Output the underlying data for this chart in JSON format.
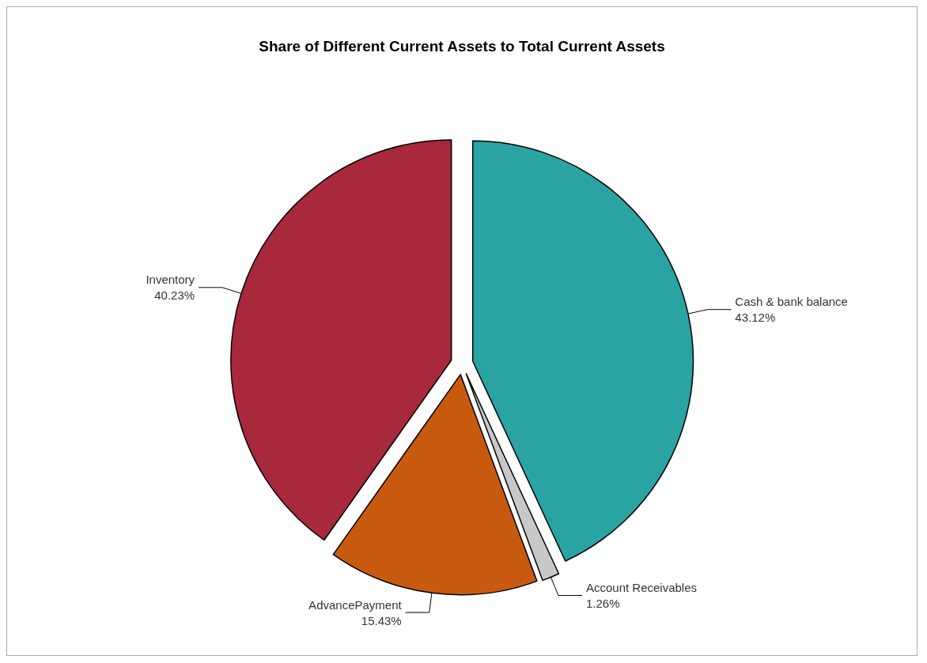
{
  "chart_data": {
    "type": "pie",
    "title": "Share of Different Current Assets to Total Current Assets",
    "categories": [
      "Cash & bank balance",
      "Account Receivables",
      "AdvancePayment",
      "Inventory"
    ],
    "values": [
      43.12,
      1.26,
      15.43,
      40.23
    ],
    "value_labels": [
      "43.12%",
      "1.26%",
      "15.43%",
      "40.23%"
    ],
    "colors": [
      "#2aa3a3",
      "#c8c8c8",
      "#c85a10",
      "#a8283c"
    ],
    "legend": false
  }
}
